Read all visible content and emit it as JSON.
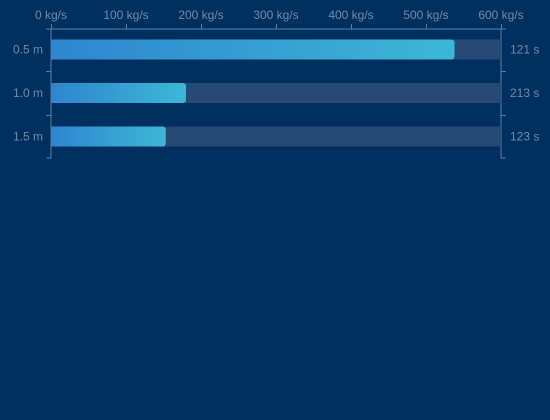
{
  "colors": {
    "background": "#00305f",
    "track": "#274a74",
    "axis": "#5d7ea3",
    "tick_text": "#6f8cae",
    "bar_gradient_start": "#2e86d0",
    "bar_gradient_end": "#3db7d6"
  },
  "chart_data": {
    "type": "bar",
    "orientation": "horizontal",
    "categories": [
      "0.5 m",
      "1.0 m",
      "1.5 m"
    ],
    "values": [
      538,
      180,
      153
    ],
    "right_labels": [
      "121 s",
      "213 s",
      "123 s"
    ],
    "x_ticks": [
      "0 kg/s",
      "100 kg/s",
      "200 kg/s",
      "300 kg/s",
      "400 kg/s",
      "500 kg/s",
      "600 kg/s"
    ],
    "x_tick_values": [
      0,
      100,
      200,
      300,
      400,
      500,
      600
    ],
    "xlim": [
      0,
      600
    ],
    "x_axis_position": "top",
    "grid": false,
    "title": "",
    "xlabel": "",
    "ylabel": ""
  }
}
